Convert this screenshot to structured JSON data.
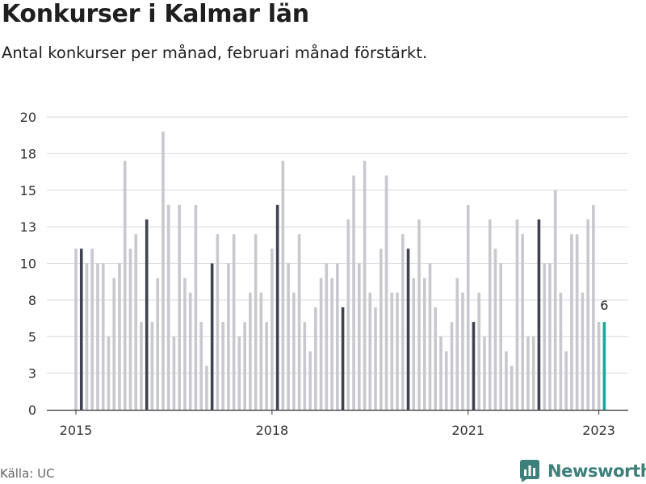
{
  "header": {
    "title": "Konkurser i Kalmar län",
    "subtitle": "Antal konkurser per månad, februari månad förstärkt."
  },
  "footer": {
    "source": "Källa: UC",
    "brand": "Newsworthy"
  },
  "colors": {
    "regular_bar": "#c8c8cf",
    "february_bar": "#3f4250",
    "latest_bar": "#1aa79e",
    "gridline": "#d9d9d9",
    "baseline": "#333333",
    "brand": "#3d7f7a"
  },
  "chart_data": {
    "type": "bar",
    "title": "Konkurser i Kalmar län",
    "subtitle": "Antal konkurser per månad, februari månad förstärkt.",
    "xlabel": "",
    "ylabel": "",
    "ylim": [
      0,
      20
    ],
    "y_ticks": [
      0,
      2.5,
      5,
      7.5,
      10,
      12.5,
      15,
      17.5,
      20
    ],
    "y_tick_labels": [
      "0",
      "3",
      "5",
      "8",
      "10",
      "13",
      "15",
      "18",
      "20"
    ],
    "x_tick_labels": [
      {
        "label": "2015",
        "year": 2015
      },
      {
        "label": "2018",
        "year": 2018
      },
      {
        "label": "2021",
        "year": 2021
      },
      {
        "label": "2023",
        "year": 2023
      }
    ],
    "grid": true,
    "start": "2015-01",
    "categories": [
      "2015-01",
      "2015-02",
      "2015-03",
      "2015-04",
      "2015-05",
      "2015-06",
      "2015-07",
      "2015-08",
      "2015-09",
      "2015-10",
      "2015-11",
      "2015-12",
      "2016-01",
      "2016-02",
      "2016-03",
      "2016-04",
      "2016-05",
      "2016-06",
      "2016-07",
      "2016-08",
      "2016-09",
      "2016-10",
      "2016-11",
      "2016-12",
      "2017-01",
      "2017-02",
      "2017-03",
      "2017-04",
      "2017-05",
      "2017-06",
      "2017-07",
      "2017-08",
      "2017-09",
      "2017-10",
      "2017-11",
      "2017-12",
      "2018-01",
      "2018-02",
      "2018-03",
      "2018-04",
      "2018-05",
      "2018-06",
      "2018-07",
      "2018-08",
      "2018-09",
      "2018-10",
      "2018-11",
      "2018-12",
      "2019-01",
      "2019-02",
      "2019-03",
      "2019-04",
      "2019-05",
      "2019-06",
      "2019-07",
      "2019-08",
      "2019-09",
      "2019-10",
      "2019-11",
      "2019-12",
      "2020-01",
      "2020-02",
      "2020-03",
      "2020-04",
      "2020-05",
      "2020-06",
      "2020-07",
      "2020-08",
      "2020-09",
      "2020-10",
      "2020-11",
      "2020-12",
      "2021-01",
      "2021-02",
      "2021-03",
      "2021-04",
      "2021-05",
      "2021-06",
      "2021-07",
      "2021-08",
      "2021-09",
      "2021-10",
      "2021-11",
      "2021-12",
      "2022-01",
      "2022-02",
      "2022-03",
      "2022-04",
      "2022-05",
      "2022-06",
      "2022-07",
      "2022-08",
      "2022-09",
      "2022-10",
      "2022-11",
      "2022-12",
      "2023-01",
      "2023-02"
    ],
    "values": [
      11,
      11,
      10,
      11,
      10,
      10,
      5,
      9,
      10,
      17,
      11,
      12,
      6,
      13,
      6,
      9,
      19,
      14,
      5,
      14,
      9,
      8,
      14,
      6,
      3,
      10,
      12,
      6,
      10,
      12,
      5,
      6,
      8,
      12,
      8,
      6,
      11,
      14,
      17,
      10,
      8,
      12,
      6,
      4,
      7,
      9,
      10,
      9,
      10,
      7,
      13,
      16,
      10,
      17,
      8,
      7,
      11,
      16,
      8,
      8,
      12,
      11,
      9,
      13,
      9,
      10,
      7,
      5,
      4,
      6,
      9,
      8,
      14,
      6,
      8,
      5,
      13,
      11,
      10,
      4,
      3,
      13,
      12,
      5,
      5,
      13,
      10,
      10,
      15,
      8,
      4,
      12,
      12,
      8,
      13,
      14,
      6,
      6
    ],
    "highlighted_value_label": "6"
  }
}
